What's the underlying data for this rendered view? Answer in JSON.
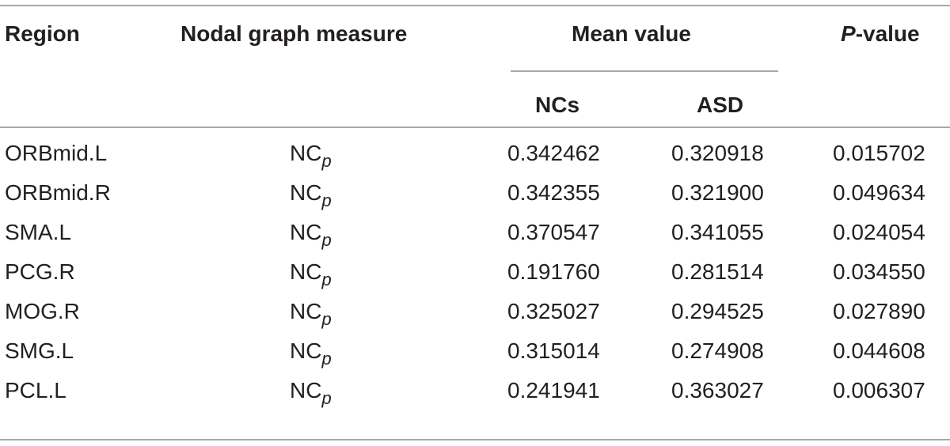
{
  "headers": {
    "region": "Region",
    "measure": "Nodal graph measure",
    "mean": "Mean value",
    "p_italic": "P",
    "p_rest": "-value",
    "ncs": "NCs",
    "asd": "ASD"
  },
  "rows": [
    {
      "region": "ORBmid.L",
      "measure_main": "NC",
      "measure_sub": "p",
      "ncs": "0.342462",
      "asd": "0.320918",
      "p": "0.015702"
    },
    {
      "region": "ORBmid.R",
      "measure_main": "NC",
      "measure_sub": "p",
      "ncs": "0.342355",
      "asd": "0.321900",
      "p": "0.049634"
    },
    {
      "region": "SMA.L",
      "measure_main": "NC",
      "measure_sub": "p",
      "ncs": "0.370547",
      "asd": "0.341055",
      "p": "0.024054"
    },
    {
      "region": "PCG.R",
      "measure_main": "NC",
      "measure_sub": "p",
      "ncs": "0.191760",
      "asd": "0.281514",
      "p": "0.034550"
    },
    {
      "region": "MOG.R",
      "measure_main": "NC",
      "measure_sub": "p",
      "ncs": "0.325027",
      "asd": "0.294525",
      "p": "0.027890"
    },
    {
      "region": "SMG.L",
      "measure_main": "NC",
      "measure_sub": "p",
      "ncs": "0.315014",
      "asd": "0.274908",
      "p": "0.044608"
    },
    {
      "region": "PCL.L",
      "measure_main": "NC",
      "measure_sub": "p",
      "ncs": "0.241941",
      "asd": "0.363027",
      "p": "0.006307"
    }
  ]
}
